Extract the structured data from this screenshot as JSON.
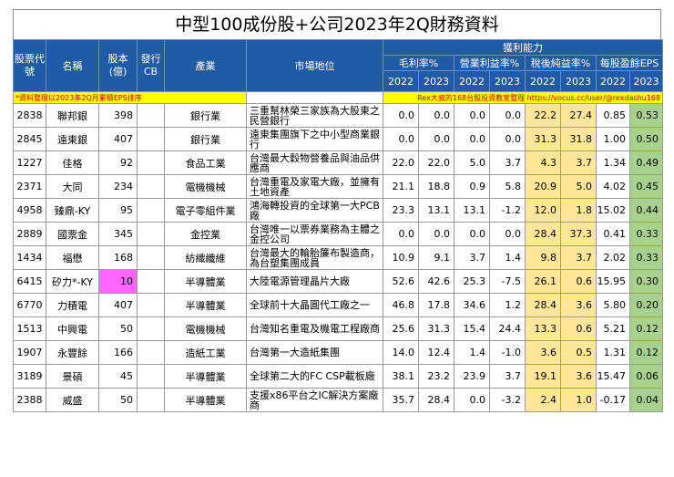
{
  "title": "中型100成份股+公司2023年2Q財務資料",
  "headers": {
    "code": "股票代號",
    "name": "名稱",
    "capital": "股本(億)",
    "cb": "發行CB",
    "industry": "產業",
    "position": "市場地位",
    "profitability": "獲利能力",
    "gross_margin": "毛利率%",
    "operating_margin": "營業利益率%",
    "net_margin": "稅後純益率%",
    "eps": "每股盈餘EPS",
    "years": [
      "2022",
      "2023"
    ]
  },
  "note_left": "*資料整理以2023年2Q月累積EPS排序",
  "note_right": "Rex大叔的168台股投資教室整理 https://vocus.cc/user/@rexdashu168",
  "colors": {
    "header_bg": "#1f5ba6",
    "net_margin_bg": "#ffe699",
    "eps2023_bg": "#a9d18e",
    "cb_highlight": "#ff66ff",
    "note_bg": "#ffff00"
  },
  "rows": [
    {
      "code": "2838",
      "name": "聯邦銀",
      "capital": "398",
      "cb": "",
      "industry": "銀行業",
      "position": "三重幫林榮三家族為大股東之民營銀行",
      "gm22": "0.0",
      "gm23": "0.0",
      "om22": "0.0",
      "om23": "0.0",
      "nm22": "22.2",
      "nm23": "27.4",
      "eps22": "0.85",
      "eps23": "0.53"
    },
    {
      "code": "2845",
      "name": "遠東銀",
      "capital": "407",
      "cb": "",
      "industry": "銀行業",
      "position": "遠東集團旗下之中小型商業銀行",
      "gm22": "0.0",
      "gm23": "0.0",
      "om22": "0.0",
      "om23": "0.0",
      "nm22": "31.3",
      "nm23": "31.8",
      "eps22": "1.00",
      "eps23": "0.50"
    },
    {
      "code": "1227",
      "name": "佳格",
      "capital": "92",
      "cb": "",
      "industry": "食品工業",
      "position": "台灣最大穀物營養品與油品供應商",
      "gm22": "22.0",
      "gm23": "22.0",
      "om22": "5.0",
      "om23": "3.7",
      "nm22": "4.3",
      "nm23": "3.7",
      "eps22": "1.34",
      "eps23": "0.49"
    },
    {
      "code": "2371",
      "name": "大同",
      "capital": "234",
      "cb": "",
      "industry": "電機機械",
      "position": "台灣重電及家電大廠，並擁有土地資產",
      "gm22": "21.1",
      "gm23": "18.8",
      "om22": "0.9",
      "om23": "5.8",
      "nm22": "20.9",
      "nm23": "5.0",
      "eps22": "4.02",
      "eps23": "0.45"
    },
    {
      "code": "4958",
      "name": "臻鼎-KY",
      "capital": "95",
      "cb": "",
      "industry": "電子零組件業",
      "position": "鴻海轉投資的全球第一大PCB廠",
      "gm22": "23.3",
      "gm23": "13.1",
      "om22": "13.1",
      "om23": "-1.2",
      "nm22": "12.0",
      "nm23": "1.8",
      "eps22": "15.02",
      "eps23": "0.44"
    },
    {
      "code": "2889",
      "name": "國票金",
      "capital": "345",
      "cb": "",
      "industry": "金控業",
      "position": "台灣唯一以票券業務為主體之金控公司",
      "gm22": "0.0",
      "gm23": "0.0",
      "om22": "0.0",
      "om23": "0.0",
      "nm22": "28.4",
      "nm23": "37.3",
      "eps22": "0.41",
      "eps23": "0.33"
    },
    {
      "code": "1434",
      "name": "福懋",
      "capital": "168",
      "cb": "",
      "industry": "紡織纖維",
      "position": "台灣最大的輪胎簾布製造商，為台塑集團成員",
      "gm22": "10.9",
      "gm23": "9.1",
      "om22": "3.7",
      "om23": "1.4",
      "nm22": "9.8",
      "nm23": "3.7",
      "eps22": "2.02",
      "eps23": "0.33"
    },
    {
      "code": "6415",
      "name": "矽力*-KY",
      "capital": "10",
      "cb": "",
      "industry": "半導體業",
      "position": "大陸電源管理晶片大廠",
      "gm22": "52.6",
      "gm23": "42.6",
      "om22": "25.3",
      "om23": "-7.5",
      "nm22": "26.1",
      "nm23": "0.6",
      "eps22": "15.95",
      "eps23": "0.30",
      "pink": true
    },
    {
      "code": "6770",
      "name": "力積電",
      "capital": "407",
      "cb": "",
      "industry": "半導體業",
      "position": "全球前十大晶圓代工廠之一",
      "gm22": "46.8",
      "gm23": "17.8",
      "om22": "34.6",
      "om23": "1.2",
      "nm22": "28.4",
      "nm23": "3.6",
      "eps22": "5.80",
      "eps23": "0.20"
    },
    {
      "code": "1513",
      "name": "中興電",
      "capital": "50",
      "cb": "",
      "industry": "電機機械",
      "position": "台灣知名重電及機電工程廠商",
      "gm22": "25.6",
      "gm23": "31.3",
      "om22": "15.4",
      "om23": "24.4",
      "nm22": "13.3",
      "nm23": "0.6",
      "eps22": "5.21",
      "eps23": "0.12"
    },
    {
      "code": "1907",
      "name": "永豐餘",
      "capital": "166",
      "cb": "",
      "industry": "造紙工業",
      "position": "台灣第一大造紙集團",
      "gm22": "14.0",
      "gm23": "12.4",
      "om22": "1.4",
      "om23": "-1.0",
      "nm22": "3.6",
      "nm23": "0.5",
      "eps22": "1.31",
      "eps23": "0.12"
    },
    {
      "code": "3189",
      "name": "景碩",
      "capital": "45",
      "cb": "",
      "industry": "半導體業",
      "position": "全球第二大的FC CSP載板廠",
      "gm22": "38.1",
      "gm23": "23.2",
      "om22": "23.9",
      "om23": "3.7",
      "nm22": "19.1",
      "nm23": "3.6",
      "eps22": "15.47",
      "eps23": "0.06"
    },
    {
      "code": "2388",
      "name": "威盛",
      "capital": "50",
      "cb": "",
      "industry": "半導體業",
      "position": "支援x86平台之IC解決方案廠商",
      "gm22": "35.7",
      "gm23": "28.4",
      "om22": "0.0",
      "om23": "-3.2",
      "nm22": "2.4",
      "nm23": "1.0",
      "eps22": "-0.17",
      "eps23": "0.04"
    }
  ]
}
